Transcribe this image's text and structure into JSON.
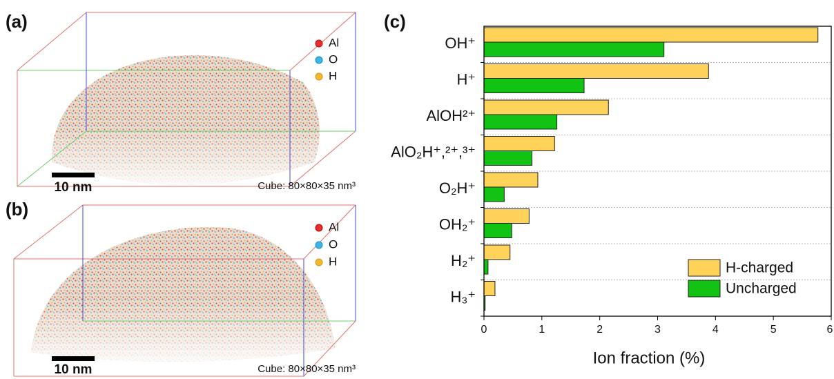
{
  "panels": [
    {
      "label": "(a)",
      "legend": [
        "Al",
        "O",
        "H"
      ],
      "scale": "10 nm",
      "cube": "Cube: 80×80×35 nm³"
    },
    {
      "label": "(b)",
      "legend": [
        "Al",
        "O",
        "H"
      ],
      "scale": "10 nm",
      "cube": "Cube: 80×80×35 nm³"
    }
  ],
  "chart_data": {
    "type": "hbar",
    "title": "(c)",
    "x_label": "Ion fraction (%)",
    "categories": [
      "OH⁺",
      "H⁺",
      "AlOH²⁺",
      "AlO₂H⁺,²⁺,³⁺",
      "O₂H⁺",
      "OH₂⁺",
      "H₂⁺",
      "H₃⁺"
    ],
    "series": [
      {
        "name": "H-charged",
        "color": "#ffd35a",
        "values": [
          5.77,
          3.88,
          2.15,
          1.22,
          0.93,
          0.78,
          0.45,
          0.19
        ]
      },
      {
        "name": "Uncharged",
        "color": "#13c313",
        "values": [
          3.11,
          1.73,
          1.26,
          0.83,
          0.35,
          0.48,
          0.07,
          0.02
        ]
      }
    ],
    "xlim": [
      0,
      6
    ],
    "xticks": [
      0,
      1,
      2,
      3,
      4,
      5,
      6
    ],
    "grid": true,
    "legend": "lower right"
  }
}
